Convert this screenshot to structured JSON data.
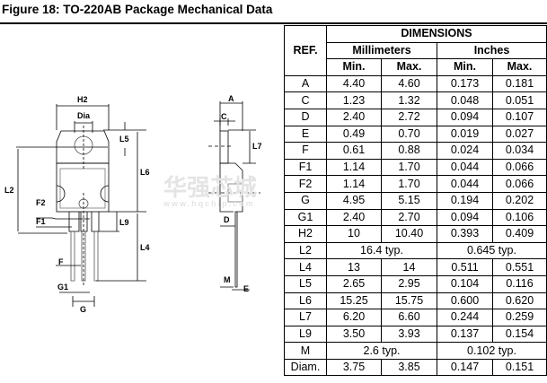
{
  "title": "Figure 18: TO-220AB Package Mechanical Data",
  "watermark": {
    "brand": "华强芯城",
    "url": "www.hqchip.com"
  },
  "drawing": {
    "labels": {
      "H2": "H2",
      "Dia": "Dia",
      "L5": "L5",
      "L6": "L6",
      "L2": "L2",
      "F2": "F2",
      "F1": "F1",
      "L9": "L9",
      "L4": "L4",
      "F": "F",
      "G1": "G1",
      "G": "G",
      "A": "A",
      "C": "C",
      "L7": "L7",
      "D": "D",
      "M": "M",
      "E": "E"
    }
  },
  "table": {
    "header": {
      "ref": "REF.",
      "dimensions": "DIMENSIONS",
      "mm": "Millimeters",
      "inches": "Inches",
      "min": "Min.",
      "max": "Max."
    },
    "rows": [
      {
        "ref": "A",
        "mm_min": "4.40",
        "mm_max": "4.60",
        "in_min": "0.173",
        "in_max": "0.181"
      },
      {
        "ref": "C",
        "mm_min": "1.23",
        "mm_max": "1.32",
        "in_min": "0.048",
        "in_max": "0.051"
      },
      {
        "ref": "D",
        "mm_min": "2.40",
        "mm_max": "2.72",
        "in_min": "0.094",
        "in_max": "0.107"
      },
      {
        "ref": "E",
        "mm_min": "0.49",
        "mm_max": "0.70",
        "in_min": "0.019",
        "in_max": "0.027"
      },
      {
        "ref": "F",
        "mm_min": "0.61",
        "mm_max": "0.88",
        "in_min": "0.024",
        "in_max": "0.034"
      },
      {
        "ref": "F1",
        "mm_min": "1.14",
        "mm_max": "1.70",
        "in_min": "0.044",
        "in_max": "0.066"
      },
      {
        "ref": "F2",
        "mm_min": "1.14",
        "mm_max": "1.70",
        "in_min": "0.044",
        "in_max": "0.066"
      },
      {
        "ref": "G",
        "mm_min": "4.95",
        "mm_max": "5.15",
        "in_min": "0.194",
        "in_max": "0.202"
      },
      {
        "ref": "G1",
        "mm_min": "2.40",
        "mm_max": "2.70",
        "in_min": "0.094",
        "in_max": "0.106"
      },
      {
        "ref": "H2",
        "mm_min": "10",
        "mm_max": "10.40",
        "in_min": "0.393",
        "in_max": "0.409"
      },
      {
        "ref": "L2",
        "mm_typ": "16.4 typ.",
        "in_typ": "0.645 typ."
      },
      {
        "ref": "L4",
        "mm_min": "13",
        "mm_max": "14",
        "in_min": "0.511",
        "in_max": "0.551"
      },
      {
        "ref": "L5",
        "mm_min": "2.65",
        "mm_max": "2.95",
        "in_min": "0.104",
        "in_max": "0.116"
      },
      {
        "ref": "L6",
        "mm_min": "15.25",
        "mm_max": "15.75",
        "in_min": "0.600",
        "in_max": "0.620"
      },
      {
        "ref": "L7",
        "mm_min": "6.20",
        "mm_max": "6.60",
        "in_min": "0.244",
        "in_max": "0.259"
      },
      {
        "ref": "L9",
        "mm_min": "3.50",
        "mm_max": "3.93",
        "in_min": "0.137",
        "in_max": "0.154"
      },
      {
        "ref": "M",
        "mm_typ": "2.6 typ.",
        "in_typ": "0.102 typ."
      },
      {
        "ref": "Diam.",
        "mm_min": "3.75",
        "mm_max": "3.85",
        "in_min": "0.147",
        "in_max": "0.151"
      }
    ]
  }
}
